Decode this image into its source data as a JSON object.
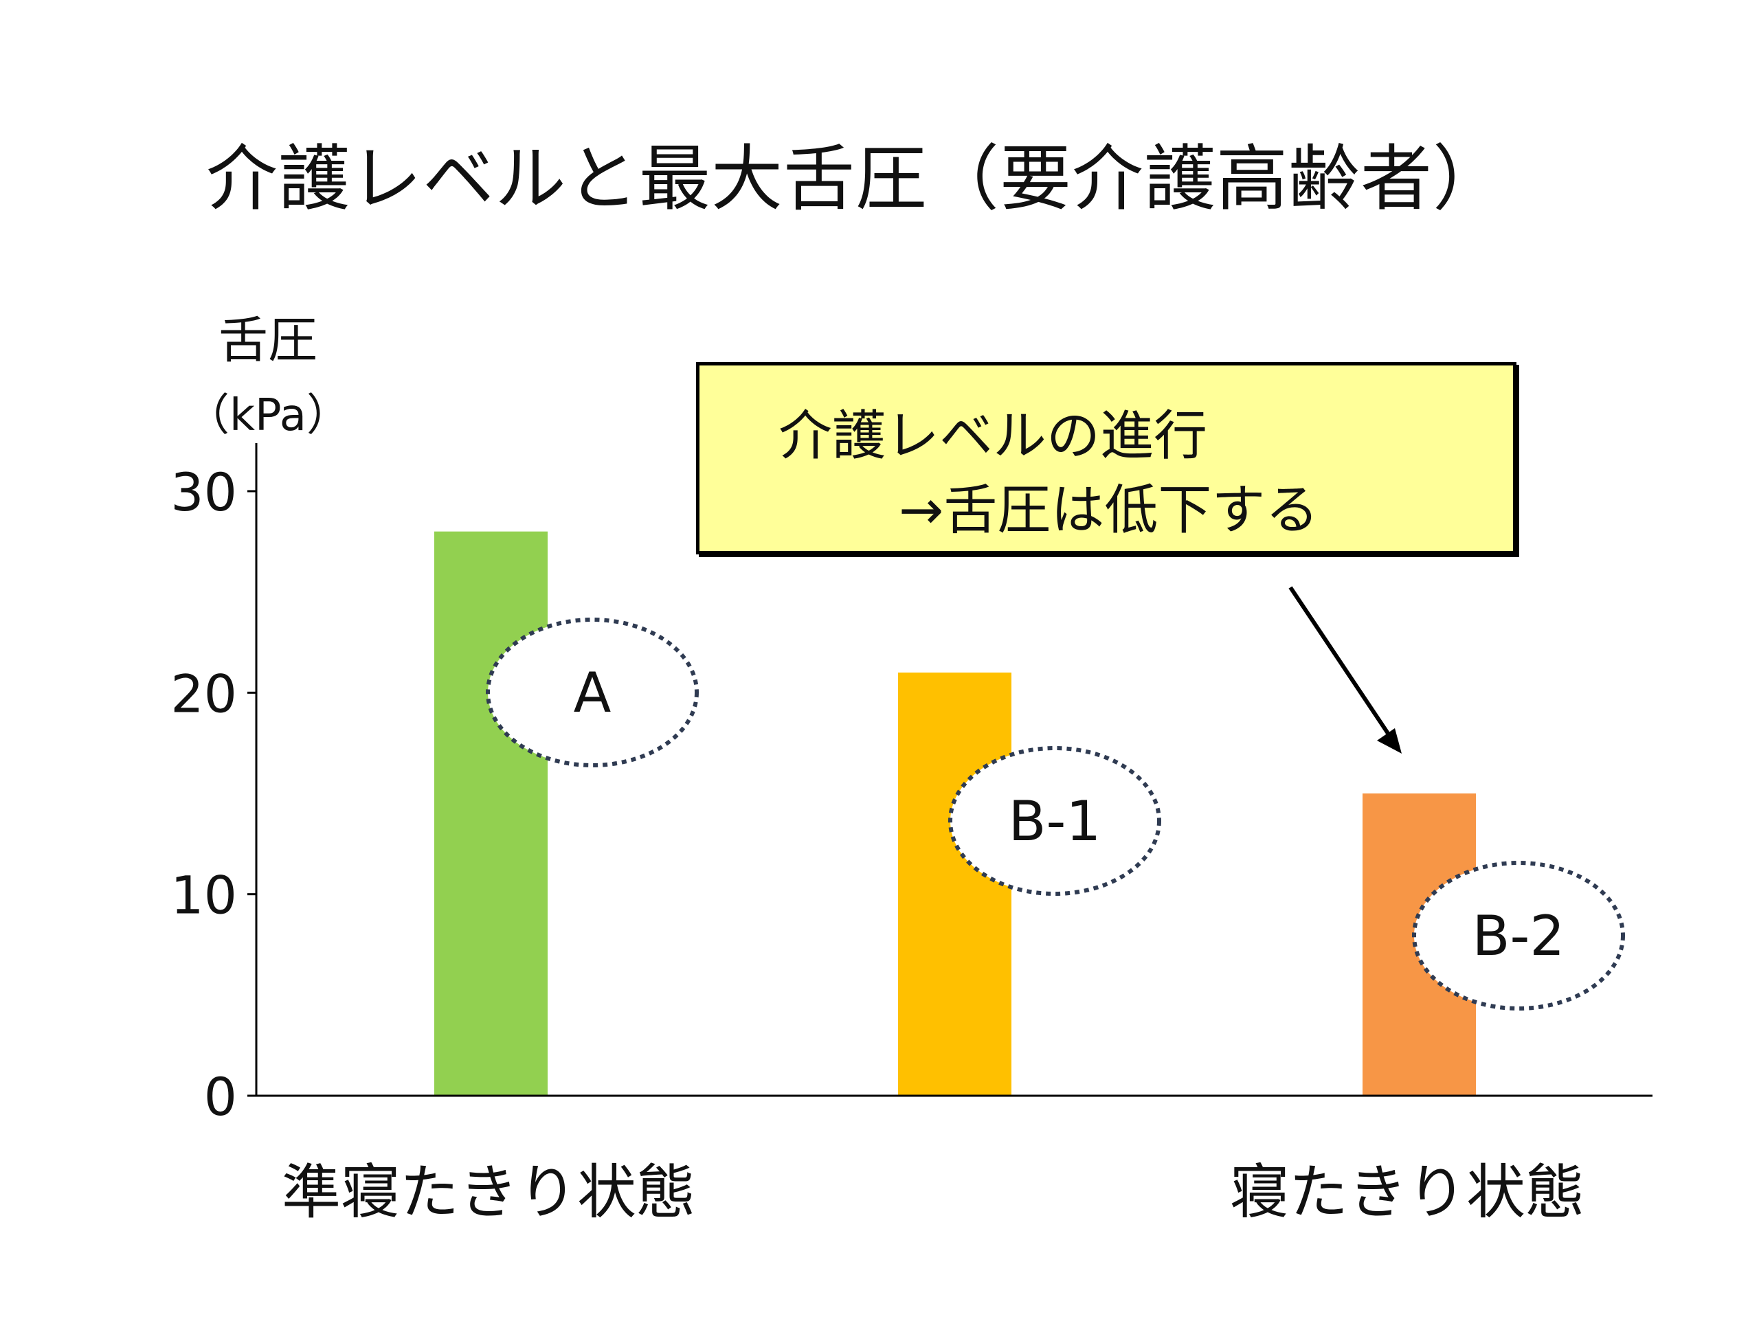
{
  "chart_data": {
    "type": "bar",
    "title": "介護レベルと最大舌圧（要介護高齢者）",
    "ylabel": "舌圧",
    "yunit": "（kPa）",
    "ylim": [
      0,
      30
    ],
    "yticks": [
      0,
      10,
      20,
      30
    ],
    "categories": [
      "A",
      "B-1",
      "B-2"
    ],
    "values": [
      28,
      21,
      15
    ],
    "colors": [
      "#92d050",
      "#ffc000",
      "#f79646"
    ],
    "xlabels": [
      "準寝たきり状態",
      "寝たきり状態"
    ],
    "annotation": {
      "line1": "介護レベルの進行",
      "line2": "→舌圧は低下する"
    },
    "grid": false,
    "legend": "none"
  }
}
